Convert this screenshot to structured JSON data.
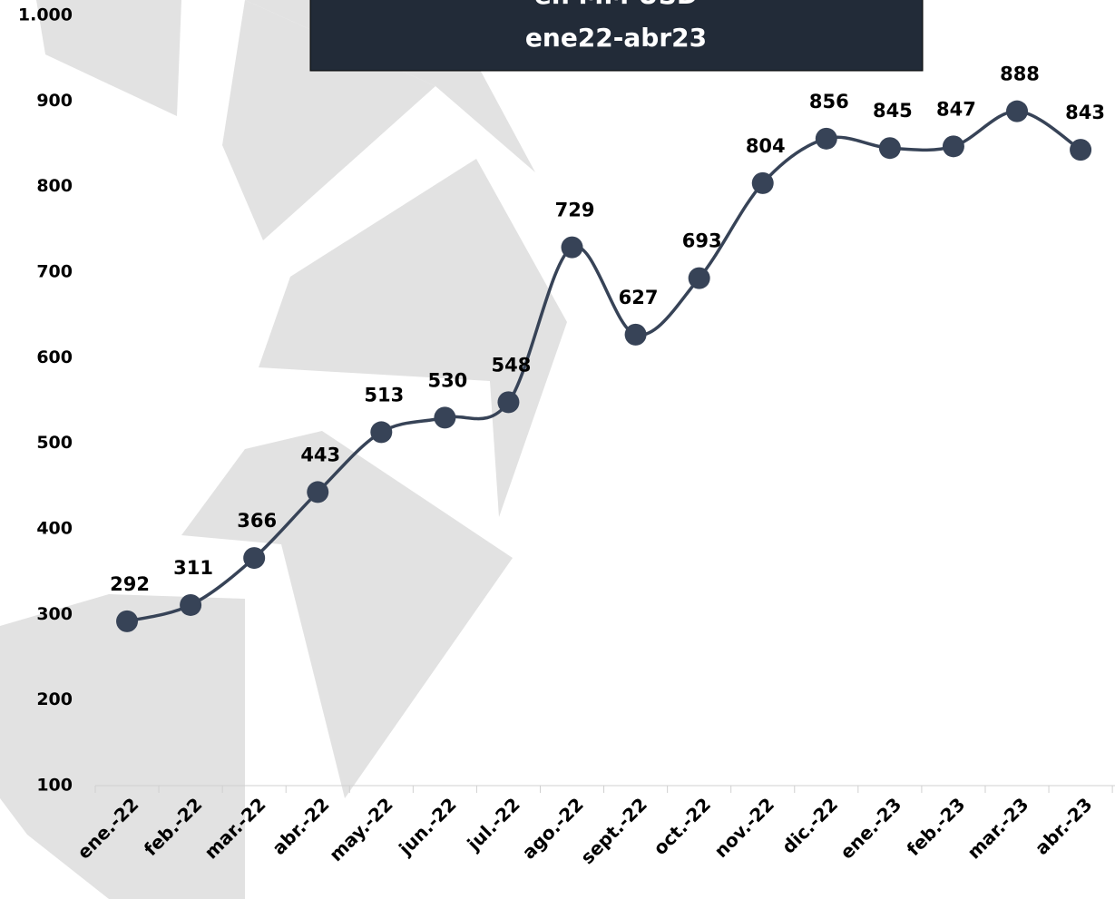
{
  "chart_data": {
    "type": "line",
    "title": "en MM USD",
    "subtitle": "ene22-abr23",
    "categories": [
      "ene.-22",
      "feb.-22",
      "mar.-22",
      "abr.-22",
      "may.-22",
      "jun.-22",
      "jul.-22",
      "ago.-22",
      "sept.-22",
      "oct.-22",
      "nov.-22",
      "dic.-22",
      "ene.-23",
      "feb.-23",
      "mar.-23",
      "abr.-23"
    ],
    "values": [
      292,
      311,
      366,
      443,
      513,
      530,
      548,
      729,
      627,
      693,
      804,
      856,
      845,
      847,
      888,
      843
    ],
    "color": "#374357",
    "ylim": [
      100,
      1000
    ],
    "yticks": [
      100,
      200,
      300,
      400,
      500,
      600,
      700,
      800,
      900,
      {
        "value": 1000,
        "label": "1.000"
      }
    ],
    "grid": false
  }
}
